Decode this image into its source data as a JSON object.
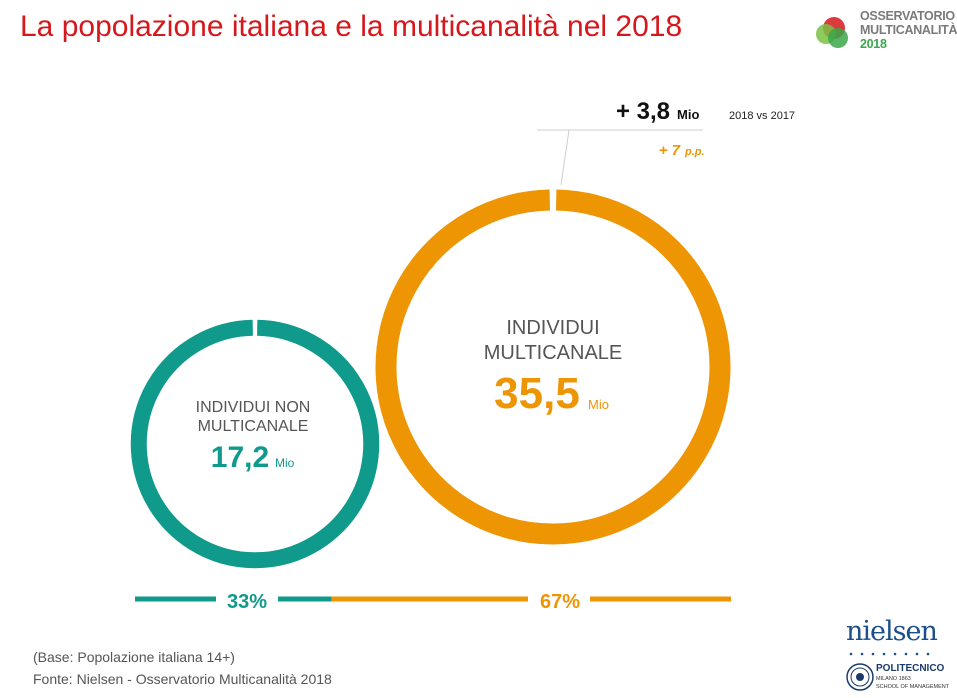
{
  "title": "La popolazione italiana e la multicanalità nel 2018",
  "logo": {
    "line1": "OSSERVATORIO",
    "line2": "MULTICANALITÀ",
    "line3": "2018"
  },
  "colors": {
    "title": "#d6171c",
    "teal": "#0f9a8c",
    "orange": "#ee9504",
    "gray_text": "#555555"
  },
  "chart_data": {
    "type": "donut",
    "series": [
      {
        "name": "INDIVIDUI NON MULTICANALE",
        "label_line1": "INDIVIDUI NON",
        "label_line2": "MULTICANALE",
        "value": 17.2,
        "value_label": "17,2",
        "unit": "Mio",
        "share": 33,
        "share_label": "33%",
        "color": "#0f9a8c"
      },
      {
        "name": "INDIVIDUI MULTICANALE",
        "label_line1": "INDIVIDUI",
        "label_line2": "MULTICANALE",
        "value": 35.5,
        "value_label": "35,5",
        "unit": "Mio",
        "share": 67,
        "share_label": "67%",
        "color": "#ee9504"
      }
    ],
    "annotation": {
      "change_value": "+ 3,8",
      "change_unit": "Mio",
      "comparison": "2018 vs 2017",
      "change_pp": "+ 7",
      "pp_unit": "p.p."
    }
  },
  "sources": {
    "base": "(Base: Popolazione italiana 14+)",
    "fonte": "Fonte: Nielsen - Osservatorio Multicanalità 2018"
  },
  "footer_logos": {
    "nielsen": "nielsen",
    "polimi_name": "POLITECNICO",
    "polimi_city": "MILANO 1863",
    "polimi_school": "SCHOOL OF MANAGEMENT"
  }
}
